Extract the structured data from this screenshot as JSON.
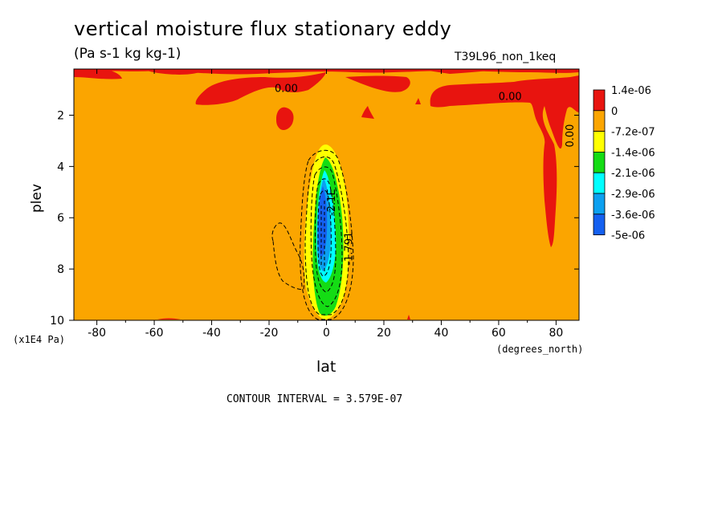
{
  "chart_data": {
    "type": "heatmap",
    "subtype": "filled-contour",
    "title": "vertical moisture flux stationary eddy",
    "units": "(Pa s-1 kg kg-1)",
    "experiment": "T39L96_non_1keq",
    "xlabel": "lat",
    "x_unit": "(degrees_north)",
    "ylabel": "plev",
    "y_unit": "(x1E4 Pa)",
    "xlim": [
      -88,
      88
    ],
    "ylim": [
      10,
      0.2
    ],
    "x_ticks": [
      -80,
      -60,
      -40,
      -20,
      0,
      20,
      40,
      60,
      80
    ],
    "x_tick_labels": [
      "-80",
      "-60",
      "-40",
      "-20",
      "0",
      "20",
      "40",
      "60",
      "80"
    ],
    "y_ticks": [
      2,
      4,
      6,
      8,
      10
    ],
    "y_tick_labels": [
      "2",
      "4",
      "6",
      "8",
      "10"
    ],
    "contour_interval": "CONTOUR INTERVAL = 3.579E-07",
    "contour_labels": [
      "0.00",
      "0.00",
      "0.00",
      "-1.791",
      "-2.1E"
    ],
    "legend": {
      "labels": [
        "1.4e-06",
        "0",
        "-7.2e-07",
        "-1.4e-06",
        "-2.1e-06",
        "-2.9e-06",
        "-3.6e-06",
        "-5e-06"
      ],
      "colors": [
        "#e8140f",
        "#fba500",
        "#ffff00",
        "#14dc14",
        "#00ffff",
        "#0ca0f0",
        "#1460f0"
      ]
    },
    "background_level_color": "#fba500",
    "regions": [
      {
        "name": "equatorial-updraft",
        "level": "-5e-06",
        "lat_center": 0,
        "plev_min": 3.2,
        "plev_max": 10
      },
      {
        "name": "arctic-positive",
        "level": "1.4e-06",
        "lat_min": 75,
        "lat_max": 88,
        "plev_min": 0.3,
        "plev_max": 7.1
      },
      {
        "name": "upper-positive-band",
        "level": "1.4e-06",
        "lat_min": -88,
        "lat_max": 88,
        "plev_min": 0.2,
        "plev_max": 1.8
      }
    ]
  }
}
